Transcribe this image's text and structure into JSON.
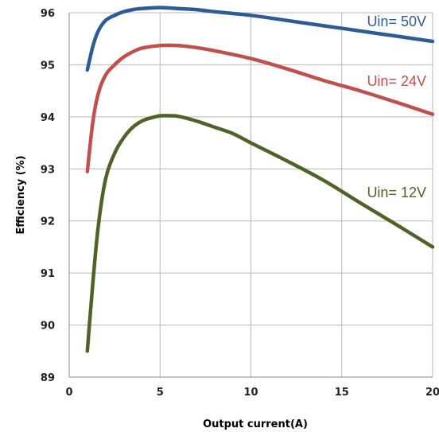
{
  "chart_data": {
    "type": "line",
    "title": "",
    "xlabel": "Output current(A)",
    "ylabel": "Efficiency (%)",
    "xlim": [
      0,
      20
    ],
    "ylim": [
      89,
      96
    ],
    "xticks": [
      0,
      5,
      10,
      15,
      20
    ],
    "yticks": [
      89,
      90,
      91,
      92,
      93,
      94,
      95,
      96
    ],
    "grid": true,
    "series": [
      {
        "name": "Uin= 50V",
        "color": "#2e5b93",
        "x": [
          1,
          1.3,
          1.6,
          2,
          2.5,
          3,
          3.5,
          4,
          5,
          6,
          7,
          8,
          10,
          12,
          14,
          16,
          18,
          20
        ],
        "y": [
          94.9,
          95.35,
          95.65,
          95.85,
          95.95,
          96.02,
          96.06,
          96.08,
          96.1,
          96.08,
          96.06,
          96.02,
          95.95,
          95.85,
          95.75,
          95.65,
          95.55,
          95.45
        ]
      },
      {
        "name": "Uin= 24V",
        "color": "#c0504d",
        "x": [
          1,
          1.3,
          1.6,
          2,
          2.5,
          3,
          3.5,
          4,
          5,
          6,
          7,
          8,
          10,
          12,
          14,
          16,
          18,
          20
        ],
        "y": [
          92.95,
          93.9,
          94.45,
          94.8,
          95.0,
          95.15,
          95.25,
          95.32,
          95.37,
          95.37,
          95.33,
          95.27,
          95.12,
          94.92,
          94.7,
          94.5,
          94.28,
          94.05
        ]
      },
      {
        "name": "Uin= 12V",
        "color": "#4f6228",
        "x": [
          1,
          1.3,
          1.6,
          2,
          2.5,
          3,
          3.5,
          4,
          4.5,
          5,
          5.5,
          6,
          7,
          8,
          9,
          10,
          12,
          14,
          16,
          18,
          20
        ],
        "y": [
          89.5,
          90.8,
          91.9,
          92.8,
          93.3,
          93.6,
          93.8,
          93.92,
          93.98,
          94.02,
          94.02,
          94.01,
          93.92,
          93.8,
          93.68,
          93.5,
          93.15,
          92.78,
          92.35,
          91.93,
          91.5
        ]
      }
    ],
    "series_label_positions": [
      "right-top",
      "right",
      "right"
    ]
  }
}
